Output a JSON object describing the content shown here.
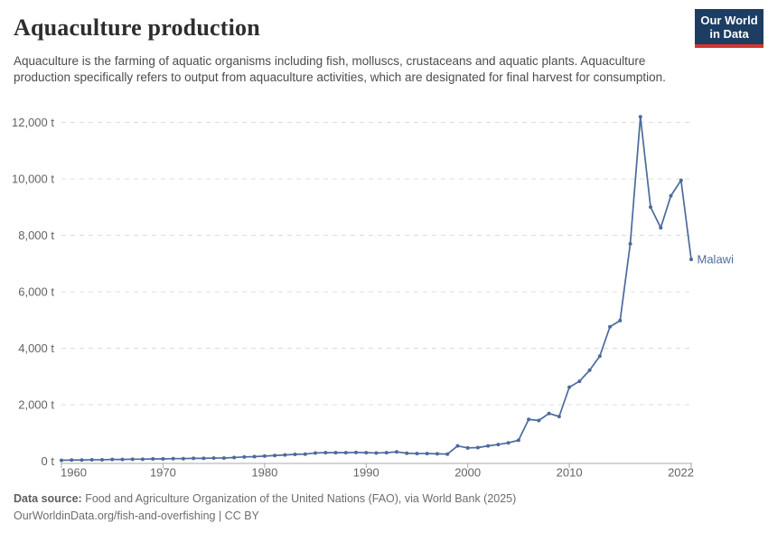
{
  "header": {
    "title": "Aquaculture production",
    "subtitle": "Aquaculture is the farming of aquatic organisms including fish, molluscs, crustaceans and aquatic plants. Aquaculture production specifically refers to output from aquaculture activities, which are designated for final harvest for consumption.",
    "logo": {
      "line1": "Our World",
      "line2": "in Data",
      "bg_color": "#1d3d63",
      "stripe_color": "#d8352a"
    }
  },
  "chart_data": {
    "type": "line",
    "title": "Aquaculture production",
    "unit": "t",
    "xlim": [
      1960,
      2022
    ],
    "ylim": [
      0,
      12000
    ],
    "grid": "horizontal-dashed",
    "legend_position": "end-of-line-label",
    "x": [
      1960,
      1961,
      1962,
      1963,
      1964,
      1965,
      1966,
      1967,
      1968,
      1969,
      1970,
      1971,
      1972,
      1973,
      1974,
      1975,
      1976,
      1977,
      1978,
      1979,
      1980,
      1981,
      1982,
      1983,
      1984,
      1985,
      1986,
      1987,
      1988,
      1989,
      1990,
      1991,
      1992,
      1993,
      1994,
      1995,
      1996,
      1997,
      1998,
      1999,
      2000,
      2001,
      2002,
      2003,
      2004,
      2005,
      2006,
      2007,
      2008,
      2009,
      2010,
      2011,
      2012,
      2013,
      2014,
      2015,
      2016,
      2017,
      2018,
      2019,
      2020,
      2021,
      2022
    ],
    "series": [
      {
        "name": "Malawi",
        "color": "#4c6a9c",
        "values": [
          30,
          40,
          40,
          50,
          50,
          60,
          60,
          70,
          70,
          80,
          80,
          90,
          90,
          100,
          100,
          110,
          110,
          130,
          150,
          160,
          180,
          200,
          220,
          240,
          250,
          290,
          300,
          300,
          300,
          310,
          300,
          290,
          300,
          330,
          280,
          270,
          270,
          260,
          250,
          540,
          470,
          480,
          540,
          590,
          650,
          740,
          1480,
          1440,
          1690,
          1580,
          2620,
          2830,
          3220,
          3720,
          4760,
          4980,
          7700,
          12200,
          9000,
          8270,
          9400,
          9950,
          7150
        ]
      }
    ],
    "y_ticks": [
      {
        "value": 0,
        "label": "0 t"
      },
      {
        "value": 2000,
        "label": "2,000 t"
      },
      {
        "value": 4000,
        "label": "4,000 t"
      },
      {
        "value": 6000,
        "label": "6,000 t"
      },
      {
        "value": 8000,
        "label": "8,000 t"
      },
      {
        "value": 10000,
        "label": "10,000 t"
      },
      {
        "value": 12000,
        "label": "12,000 t"
      }
    ],
    "x_ticks": [
      {
        "value": 1960,
        "label": "1960",
        "anchor": "start"
      },
      {
        "value": 1970,
        "label": "1970",
        "anchor": "middle"
      },
      {
        "value": 1980,
        "label": "1980",
        "anchor": "middle"
      },
      {
        "value": 1990,
        "label": "1990",
        "anchor": "middle"
      },
      {
        "value": 2000,
        "label": "2000",
        "anchor": "middle"
      },
      {
        "value": 2010,
        "label": "2010",
        "anchor": "middle"
      },
      {
        "value": 2022,
        "label": "2022",
        "anchor": "end"
      }
    ]
  },
  "footer": {
    "source_label": "Data source:",
    "source_text": " Food and Agriculture Organization of the United Nations (FAO), via World Bank (2025)",
    "url": "OurWorldinData.org/fish-and-overfishing",
    "license": " | CC BY"
  }
}
